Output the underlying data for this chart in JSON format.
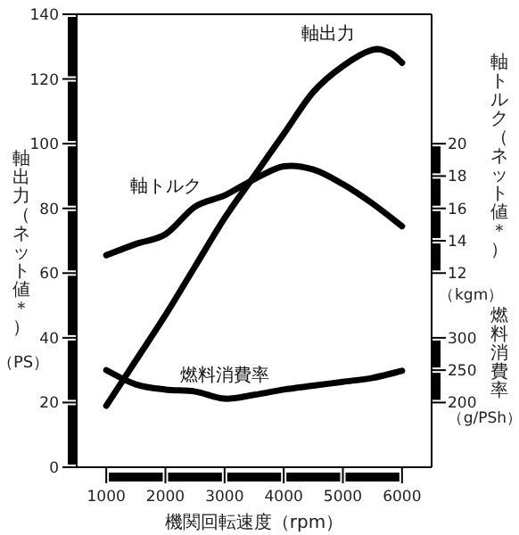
{
  "chart_data": {
    "type": "line",
    "xlabel": "機関回転速度（rpm）",
    "ylabel": "軸出力（ネット値＊）（PS）",
    "y2label": "軸トルク（ネット値＊）（kgm）",
    "y3label": "燃料消費率（g/PSh）",
    "xlim": [
      500,
      6500
    ],
    "xticks": [
      1000,
      2000,
      3000,
      4000,
      5000,
      6000
    ],
    "ylim": [
      0,
      140
    ],
    "yticks": [
      0,
      20,
      40,
      60,
      80,
      100,
      120,
      140
    ],
    "y2lim": [
      0,
      28
    ],
    "y2ticks": [
      12,
      14,
      16,
      18,
      20
    ],
    "y3lim": [
      100,
      800
    ],
    "y3ticks": [
      200,
      250,
      300
    ],
    "marker": "none",
    "line_style": "solid",
    "series": [
      {
        "name": "軸出力",
        "color": "#000000",
        "axis": "y",
        "x": [
          1000,
          1500,
          2000,
          2500,
          3000,
          3500,
          4000,
          4500,
          5000,
          5500,
          5800,
          6000
        ],
        "values": [
          19,
          33,
          47,
          62,
          77,
          90,
          103,
          116,
          124,
          129,
          128,
          125
        ]
      },
      {
        "name": "軸トルク",
        "color": "#000000",
        "axis": "y2",
        "x": [
          1000,
          1500,
          2000,
          2500,
          3000,
          3500,
          4000,
          4500,
          5000,
          5500,
          6000
        ],
        "values": [
          13.1,
          13.8,
          14.4,
          16.1,
          16.8,
          17.8,
          18.6,
          18.4,
          17.5,
          16.3,
          14.9
        ]
      },
      {
        "name": "燃料消費率",
        "color": "#000000",
        "axis": "y3",
        "x": [
          1000,
          1500,
          2000,
          2500,
          3000,
          3500,
          4000,
          4500,
          5000,
          5500,
          6000
        ],
        "values": [
          250,
          228,
          220,
          217,
          206,
          212,
          220,
          226,
          232,
          238,
          249
        ]
      }
    ]
  }
}
